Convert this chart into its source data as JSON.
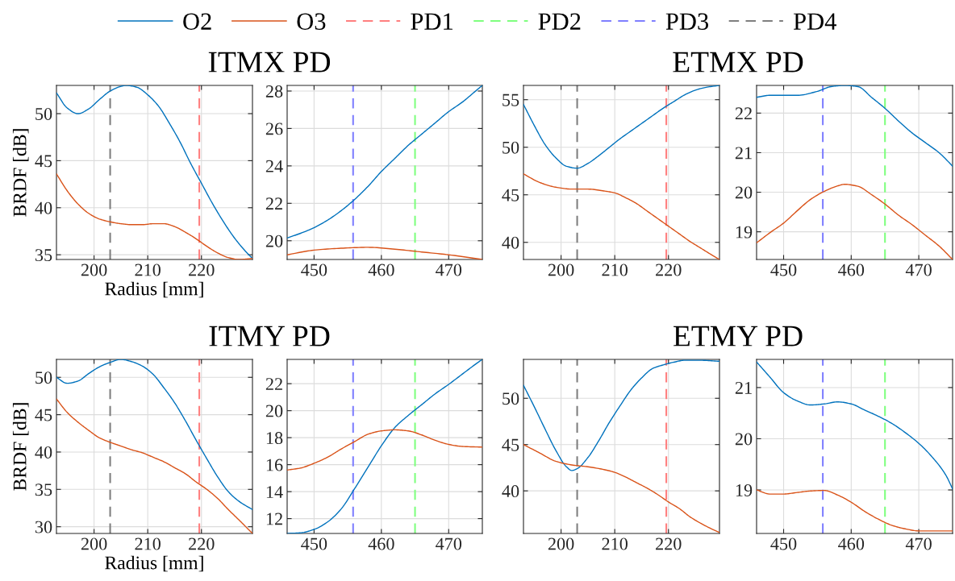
{
  "chart_data": [
    {
      "type": "line",
      "title": "ITMX PD",
      "xlabel": "Radius [mm]",
      "ylabel": "BRDF [dB]",
      "xlim": [
        193,
        229.5
      ],
      "xticks": [
        200,
        210,
        220
      ],
      "ylim": [
        34.5,
        53
      ],
      "yticks": [
        35,
        40,
        45,
        50
      ],
      "grid": true,
      "legend": "top",
      "line_style": "solid",
      "series": [
        {
          "name": "O2",
          "color": "#0072bd",
          "x": [
            193,
            195,
            197,
            199,
            201,
            203,
            205,
            206,
            208,
            210,
            212,
            214,
            216,
            218,
            220,
            222,
            224,
            226,
            228,
            229.5
          ],
          "values": [
            52.2,
            50.6,
            50.0,
            50.5,
            51.5,
            52.4,
            52.9,
            53.0,
            52.8,
            52.0,
            50.8,
            49.0,
            47.0,
            44.7,
            42.6,
            40.5,
            38.6,
            36.9,
            35.5,
            34.6
          ]
        },
        {
          "name": "O3",
          "color": "#d95319",
          "x": [
            193,
            195,
            197,
            199,
            201,
            203,
            205,
            207,
            209,
            211,
            213,
            215,
            217,
            219,
            221,
            223,
            225,
            227,
            229.5
          ],
          "values": [
            43.6,
            41.8,
            40.4,
            39.4,
            38.8,
            38.5,
            38.3,
            38.2,
            38.2,
            38.3,
            38.3,
            38.0,
            37.4,
            36.7,
            35.9,
            35.2,
            34.7,
            34.5,
            34.6
          ]
        }
      ],
      "ref_lines": [
        {
          "axis": "x",
          "value": 219.6,
          "label": "PD1",
          "color": "#ff7f7f",
          "line_style": "dashed"
        },
        {
          "axis": "x",
          "value": 203,
          "label": "PD4",
          "color": "#7f7f7f",
          "line_style": "dashed"
        }
      ]
    },
    {
      "type": "line",
      "xlim": [
        446,
        475
      ],
      "xticks": [
        450,
        460,
        470
      ],
      "ylim": [
        19,
        28.3
      ],
      "yticks": [
        20,
        22,
        24,
        26,
        28
      ],
      "grid": true,
      "legend": "top",
      "line_style": "solid",
      "series": [
        {
          "name": "O2",
          "color": "#0072bd",
          "x": [
            446,
            448,
            450,
            452,
            454,
            456,
            458,
            460,
            462,
            464,
            466,
            468,
            470,
            472,
            474,
            475
          ],
          "values": [
            20.15,
            20.4,
            20.7,
            21.1,
            21.6,
            22.2,
            22.9,
            23.7,
            24.4,
            25.1,
            25.7,
            26.3,
            26.9,
            27.4,
            28.0,
            28.3
          ]
        },
        {
          "name": "O3",
          "color": "#d95319",
          "x": [
            446,
            450,
            454,
            458,
            462,
            466,
            470,
            475
          ],
          "values": [
            19.25,
            19.5,
            19.6,
            19.65,
            19.55,
            19.4,
            19.25,
            19.0
          ]
        }
      ],
      "ref_lines": [
        {
          "axis": "x",
          "value": 465,
          "label": "PD2",
          "color": "#7fff7f",
          "line_style": "dashed"
        },
        {
          "axis": "x",
          "value": 455.8,
          "label": "PD3",
          "color": "#7f7fff",
          "line_style": "dashed"
        }
      ]
    },
    {
      "type": "line",
      "title": "ETMX PD",
      "xlim": [
        193,
        229.5
      ],
      "xticks": [
        200,
        210,
        220
      ],
      "ylim": [
        38.2,
        56.5
      ],
      "yticks": [
        40,
        45,
        50,
        55
      ],
      "grid": true,
      "line_style": "solid",
      "series": [
        {
          "name": "O2",
          "color": "#0072bd",
          "x": [
            193,
            195,
            197,
            199,
            201,
            203,
            205,
            207,
            209,
            211,
            213,
            215,
            217,
            219,
            221,
            223,
            225,
            227,
            229.5
          ],
          "values": [
            54.5,
            52.3,
            50.3,
            48.9,
            48.0,
            47.8,
            48.3,
            49.1,
            50.0,
            50.9,
            51.7,
            52.5,
            53.3,
            54.1,
            54.8,
            55.5,
            56.0,
            56.3,
            56.5
          ]
        },
        {
          "name": "O3",
          "color": "#d95319",
          "x": [
            193,
            196,
            199,
            202,
            205,
            208,
            210,
            212,
            214,
            216,
            218,
            220,
            222,
            224,
            226,
            228,
            229.5
          ],
          "values": [
            47.2,
            46.3,
            45.8,
            45.6,
            45.6,
            45.4,
            45.2,
            44.7,
            44.1,
            43.3,
            42.5,
            41.7,
            40.9,
            40.1,
            39.4,
            38.7,
            38.2
          ]
        }
      ],
      "ref_lines": [
        {
          "axis": "x",
          "value": 219.6,
          "color": "#ff7f7f",
          "line_style": "dashed"
        },
        {
          "axis": "x",
          "value": 203,
          "color": "#7f7f7f",
          "line_style": "dashed"
        }
      ]
    },
    {
      "type": "line",
      "xlim": [
        446,
        475
      ],
      "xticks": [
        450,
        460,
        470
      ],
      "ylim": [
        18.3,
        22.7
      ],
      "yticks": [
        19,
        20,
        21,
        22
      ],
      "grid": true,
      "line_style": "solid",
      "series": [
        {
          "name": "O2",
          "color": "#0072bd",
          "x": [
            446,
            448,
            452,
            455,
            457,
            459,
            461,
            463,
            465,
            467,
            469,
            471,
            473,
            475
          ],
          "values": [
            22.4,
            22.45,
            22.45,
            22.55,
            22.67,
            22.7,
            22.67,
            22.4,
            22.12,
            21.8,
            21.5,
            21.25,
            21.0,
            20.66
          ]
        },
        {
          "name": "O3",
          "color": "#d95319",
          "x": [
            446,
            448,
            450,
            452,
            454,
            456,
            458,
            459,
            461,
            463,
            465,
            467,
            469,
            471,
            473,
            475
          ],
          "values": [
            18.72,
            18.98,
            19.22,
            19.53,
            19.82,
            20.02,
            20.16,
            20.2,
            20.15,
            19.94,
            19.7,
            19.42,
            19.18,
            18.91,
            18.64,
            18.3
          ]
        }
      ],
      "ref_lines": [
        {
          "axis": "x",
          "value": 465,
          "color": "#7fff7f",
          "line_style": "dashed"
        },
        {
          "axis": "x",
          "value": 455.8,
          "color": "#7f7fff",
          "line_style": "dashed"
        }
      ]
    },
    {
      "type": "line",
      "title": "ITMY PD",
      "xlabel": "Radius [mm]",
      "ylabel": "BRDF [dB]",
      "xlim": [
        193,
        229.5
      ],
      "xticks": [
        200,
        210,
        220
      ],
      "ylim": [
        29.1,
        52.4
      ],
      "yticks": [
        30,
        35,
        40,
        45,
        50
      ],
      "grid": true,
      "line_style": "solid",
      "series": [
        {
          "name": "O2",
          "color": "#0072bd",
          "x": [
            193,
            195,
            197,
            199,
            201,
            203,
            205,
            207,
            209,
            211,
            213,
            215,
            217,
            219,
            221,
            223,
            225,
            227,
            229.5
          ],
          "values": [
            50.0,
            49.2,
            49.5,
            50.5,
            51.4,
            52.0,
            52.4,
            52.1,
            51.5,
            50.4,
            48.6,
            46.6,
            44.2,
            41.6,
            39.1,
            36.7,
            34.7,
            33.4,
            32.3
          ]
        },
        {
          "name": "O3",
          "color": "#d95319",
          "x": [
            193,
            195,
            197,
            199,
            201,
            203,
            205,
            207,
            209,
            211,
            213,
            215,
            217,
            219,
            221,
            223,
            225,
            227,
            229.5
          ],
          "values": [
            47.1,
            45.3,
            44.0,
            42.9,
            41.9,
            41.3,
            40.8,
            40.3,
            39.9,
            39.3,
            38.7,
            37.9,
            37.1,
            36.0,
            35.0,
            33.8,
            32.3,
            30.9,
            29.1
          ]
        }
      ],
      "ref_lines": [
        {
          "axis": "x",
          "value": 219.6,
          "color": "#ff7f7f",
          "line_style": "dashed"
        },
        {
          "axis": "x",
          "value": 203,
          "color": "#7f7f7f",
          "line_style": "dashed"
        }
      ]
    },
    {
      "type": "line",
      "xlim": [
        446,
        475
      ],
      "xticks": [
        450,
        460,
        470
      ],
      "ylim": [
        10.9,
        23.8
      ],
      "yticks": [
        12,
        14,
        16,
        18,
        20,
        22
      ],
      "grid": true,
      "line_style": "solid",
      "series": [
        {
          "name": "O2",
          "color": "#0072bd",
          "x": [
            446,
            448,
            450,
            452,
            454,
            456,
            458,
            460,
            462,
            464,
            466,
            468,
            470,
            472,
            474,
            475
          ],
          "values": [
            10.9,
            10.95,
            11.2,
            11.75,
            12.7,
            14.2,
            15.8,
            17.4,
            18.75,
            19.65,
            20.45,
            21.25,
            21.95,
            22.7,
            23.45,
            23.8
          ]
        },
        {
          "name": "O3",
          "color": "#d95319",
          "x": [
            446,
            448,
            450,
            452,
            454,
            456,
            458,
            460,
            462,
            464,
            466,
            468,
            470,
            472,
            475
          ],
          "values": [
            15.6,
            15.75,
            16.1,
            16.55,
            17.15,
            17.7,
            18.25,
            18.5,
            18.58,
            18.5,
            18.2,
            17.8,
            17.5,
            17.35,
            17.3
          ]
        }
      ],
      "ref_lines": [
        {
          "axis": "x",
          "value": 465,
          "color": "#7fff7f",
          "line_style": "dashed"
        },
        {
          "axis": "x",
          "value": 455.8,
          "color": "#7f7fff",
          "line_style": "dashed"
        }
      ]
    },
    {
      "type": "line",
      "title": "ETMY PD",
      "xlim": [
        193,
        229.5
      ],
      "xticks": [
        200,
        210,
        220
      ],
      "ylim": [
        35.4,
        54.2
      ],
      "yticks": [
        40,
        45,
        50
      ],
      "grid": true,
      "line_style": "solid",
      "series": [
        {
          "name": "O2",
          "color": "#0072bd",
          "x": [
            193,
            195,
            197,
            199,
            201,
            202,
            203,
            205,
            207,
            209,
            211,
            213,
            215,
            217,
            219,
            221,
            223,
            226,
            229.5
          ],
          "values": [
            51.4,
            49.1,
            46.7,
            44.4,
            42.6,
            42.2,
            42.4,
            43.6,
            45.4,
            47.4,
            49.2,
            50.9,
            52.2,
            53.2,
            53.6,
            53.9,
            54.1,
            54.1,
            54.0
          ]
        },
        {
          "name": "O3",
          "color": "#d95319",
          "x": [
            193,
            196,
            199,
            202,
            205,
            208,
            210,
            212,
            214,
            216,
            218,
            220,
            222,
            224,
            226,
            228,
            229.5
          ],
          "values": [
            45.0,
            44.1,
            43.2,
            42.8,
            42.6,
            42.3,
            42.0,
            41.5,
            40.9,
            40.3,
            39.6,
            38.8,
            38.1,
            37.2,
            36.5,
            35.9,
            35.5
          ]
        }
      ],
      "ref_lines": [
        {
          "axis": "x",
          "value": 219.6,
          "color": "#ff7f7f",
          "line_style": "dashed"
        },
        {
          "axis": "x",
          "value": 203,
          "color": "#7f7f7f",
          "line_style": "dashed"
        }
      ]
    },
    {
      "type": "line",
      "xlim": [
        446,
        475
      ],
      "xticks": [
        450,
        460,
        470
      ],
      "ylim": [
        18.15,
        21.55
      ],
      "yticks": [
        19,
        20,
        21
      ],
      "grid": true,
      "line_style": "solid",
      "series": [
        {
          "name": "O2",
          "color": "#0072bd",
          "x": [
            446,
            448,
            450,
            452,
            454,
            456,
            458,
            460,
            462,
            464,
            466,
            468,
            470,
            472,
            474,
            475
          ],
          "values": [
            21.5,
            21.2,
            20.9,
            20.74,
            20.66,
            20.68,
            20.72,
            20.68,
            20.56,
            20.44,
            20.3,
            20.12,
            19.91,
            19.64,
            19.29,
            19.02
          ]
        },
        {
          "name": "O3",
          "color": "#d95319",
          "x": [
            446,
            448,
            450,
            452,
            454,
            456,
            458,
            460,
            462,
            464,
            466,
            468,
            470,
            475
          ],
          "values": [
            19.0,
            18.92,
            18.92,
            18.95,
            18.98,
            18.99,
            18.9,
            18.76,
            18.58,
            18.43,
            18.31,
            18.24,
            18.2,
            18.2
          ]
        }
      ],
      "ref_lines": [
        {
          "axis": "x",
          "value": 465,
          "color": "#7fff7f",
          "line_style": "dashed"
        },
        {
          "axis": "x",
          "value": 455.8,
          "color": "#7f7fff",
          "line_style": "dashed"
        }
      ]
    }
  ]
}
